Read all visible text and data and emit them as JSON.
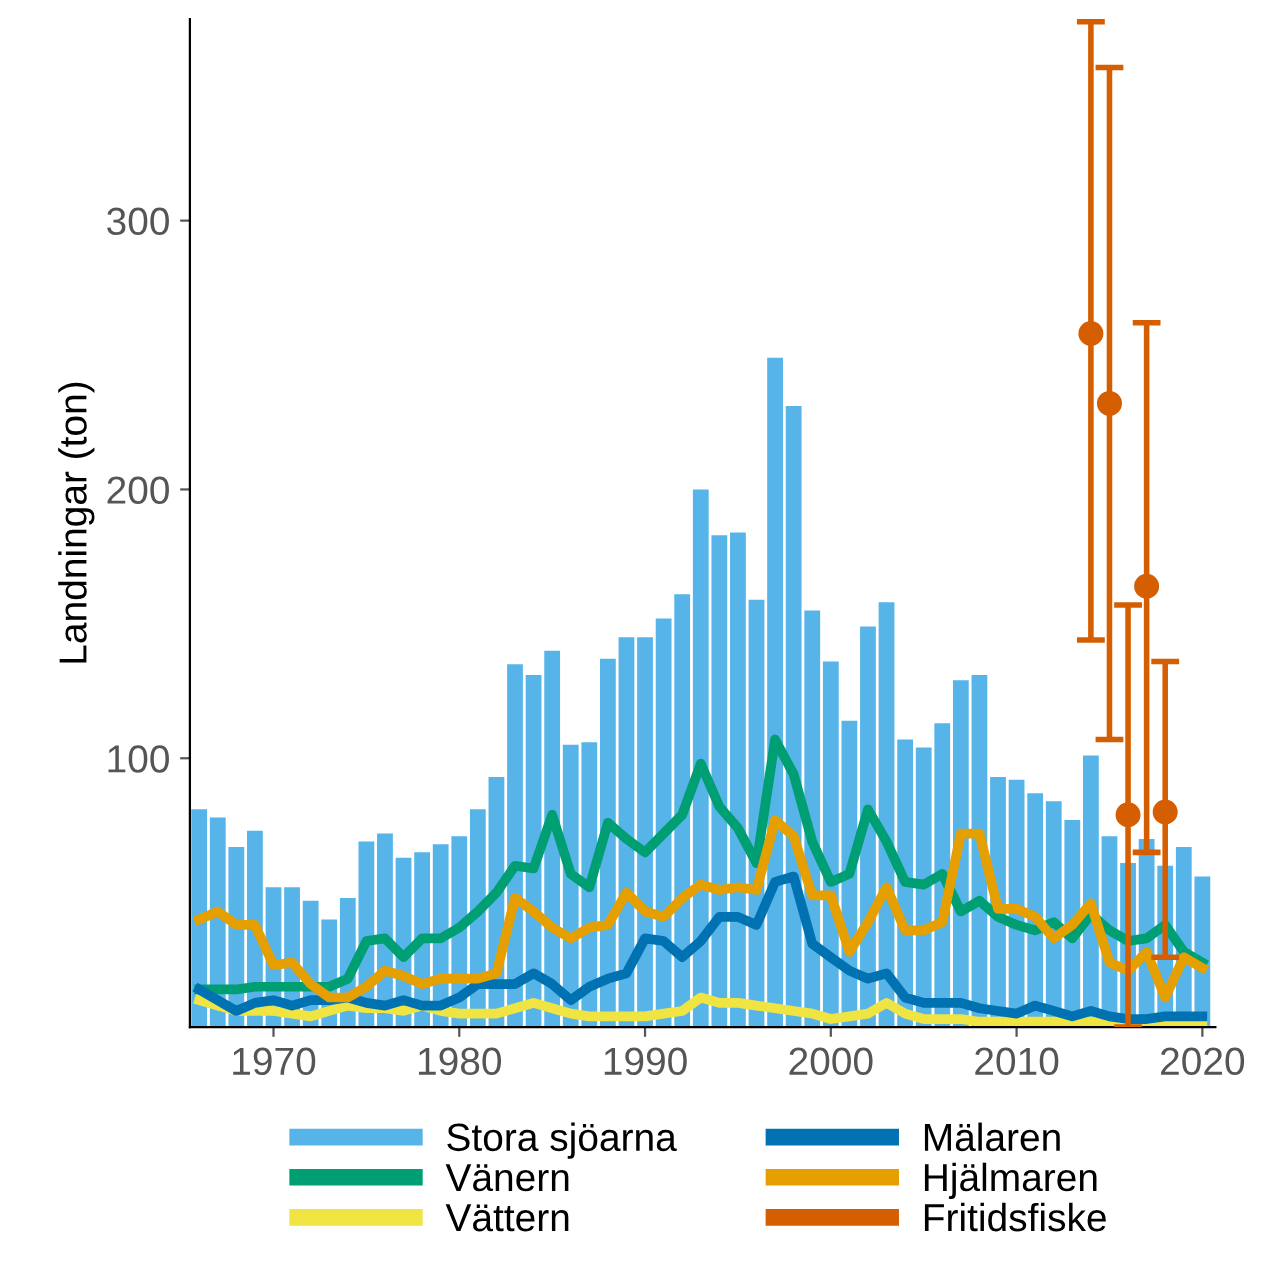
{
  "chart_data": {
    "type": "bar",
    "ylabel": "Landningar (ton)",
    "x": [
      1966,
      1967,
      1968,
      1969,
      1970,
      1971,
      1972,
      1973,
      1974,
      1975,
      1976,
      1977,
      1978,
      1979,
      1980,
      1981,
      1982,
      1983,
      1984,
      1985,
      1986,
      1987,
      1988,
      1989,
      1990,
      1991,
      1992,
      1993,
      1994,
      1995,
      1996,
      1997,
      1998,
      1999,
      2000,
      2001,
      2002,
      2003,
      2004,
      2005,
      2006,
      2007,
      2008,
      2009,
      2010,
      2011,
      2012,
      2013,
      2014,
      2015,
      2016,
      2017,
      2018,
      2019,
      2020
    ],
    "series": [
      {
        "name": "Stora sjöarna",
        "color": "#56b4e9",
        "values": [
          81,
          78,
          67,
          73,
          52,
          52,
          47,
          40,
          48,
          69,
          72,
          63,
          65,
          68,
          71,
          81,
          93,
          135,
          131,
          140,
          105,
          106,
          137,
          145,
          145,
          152,
          161,
          200,
          183,
          184,
          159,
          249,
          231,
          155,
          136,
          114,
          149,
          158,
          107,
          104,
          113,
          129,
          131,
          93,
          92,
          87,
          84,
          77,
          101,
          71,
          61,
          70,
          60,
          67,
          56
        ]
      },
      {
        "name": "Vänern",
        "type": "line",
        "color": "#009e73",
        "values": [
          14,
          14,
          14,
          15,
          15,
          15,
          15,
          15,
          18,
          32,
          33,
          26,
          33,
          33,
          37,
          43,
          50,
          60,
          59,
          79,
          57,
          52,
          76,
          70,
          65,
          72,
          79,
          98,
          82,
          74,
          61,
          107,
          94,
          69,
          54,
          57,
          81,
          69,
          54,
          53,
          57,
          43,
          47,
          41,
          38,
          36,
          39,
          33,
          42,
          36,
          32,
          33,
          38,
          28,
          24
        ]
      },
      {
        "name": "Vättern",
        "type": "line",
        "color": "#f0e442",
        "values": [
          10,
          8,
          6,
          6,
          6,
          5,
          4,
          6,
          8,
          7,
          7,
          6,
          8,
          6,
          5,
          5,
          5,
          7,
          9,
          7,
          5,
          4,
          4,
          4,
          4,
          5,
          6,
          11,
          9,
          9,
          8,
          7,
          6,
          5,
          3,
          4,
          5,
          9,
          5,
          3,
          3,
          3,
          2,
          2,
          2,
          2,
          2,
          2,
          2,
          2,
          2,
          2,
          2,
          2,
          2
        ]
      },
      {
        "name": "Mälaren",
        "type": "line",
        "color": "#0072b2",
        "values": [
          14,
          10,
          6,
          9,
          10,
          8,
          10,
          10,
          11,
          9,
          8,
          10,
          8,
          8,
          11,
          16,
          16,
          16,
          20,
          16,
          10,
          15,
          18,
          20,
          33,
          32,
          26,
          32,
          41,
          41,
          38,
          54,
          56,
          31,
          26,
          21,
          18,
          20,
          11,
          9,
          9,
          9,
          7,
          6,
          5,
          8,
          6,
          4,
          6,
          4,
          3,
          3,
          4,
          4,
          4
        ]
      },
      {
        "name": "Hjälmaren",
        "type": "line",
        "color": "#e69f00",
        "values": [
          40,
          43,
          38,
          38,
          23,
          24,
          16,
          11,
          11,
          15,
          21,
          19,
          16,
          18,
          18,
          18,
          20,
          48,
          43,
          37,
          33,
          37,
          38,
          50,
          43,
          41,
          48,
          53,
          51,
          52,
          51,
          77,
          71,
          49,
          49,
          28,
          39,
          52,
          36,
          36,
          39,
          72,
          72,
          44,
          44,
          41,
          33,
          38,
          46,
          24,
          21,
          28,
          11,
          26,
          22
        ]
      },
      {
        "name": "Fritidsfiske",
        "type": "scatter",
        "color": "#d55e00",
        "marker": "circle",
        "x": [
          2014,
          2015,
          2016,
          2017,
          2018
        ],
        "values": [
          258,
          232,
          79,
          164,
          80
        ],
        "errors": [
          [
            144,
            374
          ],
          [
            107,
            357
          ],
          [
            0,
            157
          ],
          [
            65,
            262
          ],
          [
            26,
            136
          ]
        ]
      }
    ],
    "xlim": [
      1965.5,
      2020.7
    ],
    "xticks": [
      1970,
      1980,
      1990,
      2000,
      2010,
      2020
    ],
    "ylim": [
      0,
      375
    ],
    "yticks": [
      100,
      200,
      300
    ],
    "grid": false,
    "legend": "bottom"
  }
}
